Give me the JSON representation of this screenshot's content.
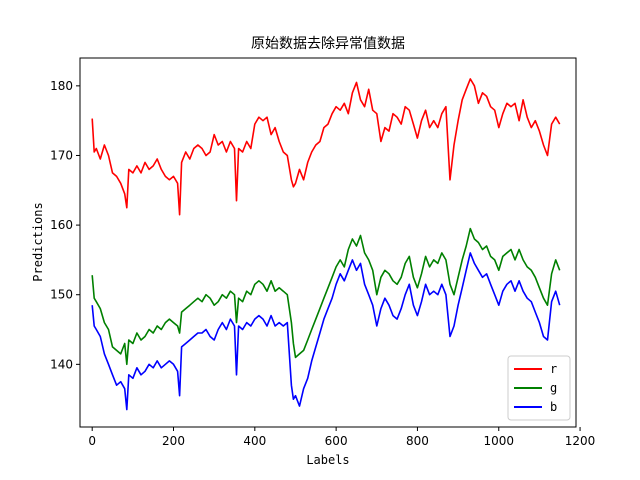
{
  "chart_data": {
    "type": "line",
    "title": "原始数据去除异常值数据",
    "xlabel": "Labels",
    "ylabel": "Predictions",
    "xlim": [
      -30,
      1190
    ],
    "ylim": [
      131,
      184
    ],
    "xticks": [
      0,
      200,
      400,
      600,
      800,
      1000,
      1200
    ],
    "yticks": [
      140,
      150,
      160,
      170,
      180
    ],
    "grid": false,
    "legend_position": "lower right",
    "series": [
      {
        "name": "r",
        "color": "#ff0000",
        "x": [
          0,
          5,
          10,
          20,
          30,
          40,
          50,
          60,
          70,
          80,
          85,
          90,
          100,
          110,
          120,
          130,
          140,
          150,
          160,
          170,
          180,
          190,
          200,
          210,
          215,
          220,
          230,
          240,
          250,
          260,
          270,
          280,
          290,
          300,
          310,
          320,
          330,
          340,
          350,
          355,
          360,
          370,
          380,
          390,
          400,
          410,
          420,
          430,
          440,
          450,
          460,
          470,
          480,
          490,
          495,
          500,
          510,
          520,
          530,
          540,
          550,
          560,
          570,
          580,
          590,
          600,
          610,
          620,
          630,
          640,
          650,
          660,
          670,
          680,
          690,
          700,
          710,
          720,
          730,
          740,
          750,
          760,
          770,
          780,
          790,
          800,
          810,
          820,
          830,
          840,
          850,
          860,
          870,
          880,
          890,
          900,
          910,
          920,
          930,
          940,
          950,
          960,
          970,
          980,
          990,
          1000,
          1010,
          1020,
          1030,
          1040,
          1050,
          1060,
          1070,
          1080,
          1090,
          1100,
          1110,
          1120,
          1130,
          1140,
          1150
        ],
        "y": [
          175.3,
          170.5,
          171.0,
          169.5,
          171.5,
          170.0,
          167.5,
          167.0,
          166.0,
          164.5,
          162.5,
          168.0,
          167.5,
          168.5,
          167.5,
          169.0,
          168.0,
          168.5,
          169.5,
          168.0,
          167.0,
          166.5,
          167.0,
          166.0,
          161.5,
          169.0,
          170.5,
          169.5,
          171.0,
          171.5,
          171.0,
          170.0,
          170.5,
          173.0,
          171.5,
          172.0,
          170.5,
          172.0,
          171.0,
          163.5,
          171.0,
          170.5,
          172.0,
          171.0,
          174.5,
          175.5,
          175.0,
          175.5,
          173.0,
          174.0,
          172.0,
          170.5,
          170.0,
          166.5,
          165.5,
          166.0,
          168.0,
          166.5,
          169.0,
          170.5,
          171.5,
          172.0,
          174.0,
          174.5,
          176.0,
          177.0,
          176.5,
          177.5,
          176.0,
          179.0,
          180.5,
          178.0,
          177.0,
          179.5,
          176.5,
          176.0,
          172.0,
          174.0,
          173.5,
          176.0,
          175.5,
          174.5,
          177.0,
          176.5,
          174.5,
          172.5,
          175.0,
          176.5,
          174.0,
          175.0,
          174.0,
          176.0,
          177.0,
          166.5,
          171.5,
          175.0,
          178.0,
          179.5,
          181.0,
          180.0,
          177.5,
          179.0,
          178.5,
          177.0,
          176.5,
          174.0,
          176.0,
          177.5,
          177.0,
          177.5,
          175.0,
          178.0,
          175.5,
          174.0,
          175.0,
          173.5,
          171.5,
          170.0,
          174.5,
          175.5,
          174.5
        ]
      },
      {
        "name": "g",
        "color": "#008000",
        "x": [
          0,
          5,
          10,
          20,
          30,
          40,
          50,
          60,
          70,
          80,
          85,
          90,
          100,
          110,
          120,
          130,
          140,
          150,
          160,
          170,
          180,
          190,
          200,
          210,
          215,
          220,
          230,
          240,
          250,
          260,
          270,
          280,
          290,
          300,
          310,
          320,
          330,
          340,
          350,
          355,
          360,
          370,
          380,
          390,
          400,
          410,
          420,
          430,
          440,
          450,
          460,
          470,
          480,
          490,
          495,
          500,
          510,
          520,
          530,
          540,
          550,
          560,
          570,
          580,
          590,
          600,
          610,
          620,
          630,
          640,
          650,
          660,
          670,
          680,
          690,
          700,
          710,
          720,
          730,
          740,
          750,
          760,
          770,
          780,
          790,
          800,
          810,
          820,
          830,
          840,
          850,
          860,
          870,
          880,
          890,
          900,
          910,
          920,
          930,
          940,
          950,
          960,
          970,
          980,
          990,
          1000,
          1010,
          1020,
          1030,
          1040,
          1050,
          1060,
          1070,
          1080,
          1090,
          1100,
          1110,
          1120,
          1130,
          1140,
          1150
        ],
        "y": [
          152.8,
          149.5,
          149.0,
          148.0,
          146.0,
          145.0,
          142.5,
          142.0,
          141.5,
          143.0,
          140.0,
          143.5,
          143.0,
          144.5,
          143.5,
          144.0,
          145.0,
          144.5,
          145.5,
          145.0,
          146.0,
          146.5,
          146.0,
          145.5,
          144.5,
          147.5,
          148.0,
          148.5,
          149.0,
          149.5,
          149.0,
          150.0,
          149.5,
          148.5,
          149.0,
          150.0,
          149.5,
          150.5,
          150.0,
          146.0,
          149.5,
          149.0,
          150.5,
          150.0,
          151.5,
          152.0,
          151.5,
          150.5,
          152.0,
          150.5,
          151.0,
          150.5,
          150.0,
          146.0,
          143.0,
          141.0,
          141.5,
          142.0,
          143.5,
          145.0,
          146.5,
          148.0,
          149.5,
          151.0,
          152.5,
          154.0,
          155.0,
          154.0,
          156.5,
          158.0,
          157.0,
          158.5,
          156.0,
          155.0,
          153.5,
          150.0,
          152.5,
          153.5,
          153.0,
          152.0,
          151.5,
          152.5,
          154.5,
          155.5,
          152.5,
          151.0,
          153.0,
          155.5,
          154.0,
          155.0,
          154.5,
          156.0,
          155.0,
          151.5,
          150.0,
          152.5,
          155.0,
          157.0,
          159.5,
          158.0,
          157.5,
          156.5,
          157.0,
          155.5,
          155.0,
          153.5,
          155.5,
          156.0,
          156.5,
          155.0,
          156.5,
          155.0,
          154.0,
          153.5,
          152.5,
          151.0,
          149.5,
          148.5,
          153.0,
          155.0,
          153.5
        ]
      },
      {
        "name": "b",
        "color": "#0000ff",
        "x": [
          0,
          5,
          10,
          20,
          30,
          40,
          50,
          60,
          70,
          80,
          85,
          90,
          100,
          110,
          120,
          130,
          140,
          150,
          160,
          170,
          180,
          190,
          200,
          210,
          215,
          220,
          230,
          240,
          250,
          260,
          270,
          280,
          290,
          300,
          310,
          320,
          330,
          340,
          350,
          355,
          360,
          370,
          380,
          390,
          400,
          410,
          420,
          430,
          440,
          450,
          460,
          470,
          480,
          490,
          495,
          500,
          510,
          520,
          530,
          540,
          550,
          560,
          570,
          580,
          590,
          600,
          610,
          620,
          630,
          640,
          650,
          660,
          670,
          680,
          690,
          700,
          710,
          720,
          730,
          740,
          750,
          760,
          770,
          780,
          790,
          800,
          810,
          820,
          830,
          840,
          850,
          860,
          870,
          880,
          890,
          900,
          910,
          920,
          930,
          940,
          950,
          960,
          970,
          980,
          990,
          1000,
          1010,
          1020,
          1030,
          1040,
          1050,
          1060,
          1070,
          1080,
          1090,
          1100,
          1110,
          1120,
          1130,
          1140,
          1150
        ],
        "y": [
          148.5,
          145.5,
          145.0,
          144.0,
          141.5,
          140.0,
          138.5,
          137.0,
          137.5,
          136.5,
          133.5,
          138.5,
          138.0,
          139.5,
          138.5,
          139.0,
          140.0,
          139.5,
          140.5,
          139.5,
          140.0,
          140.5,
          140.0,
          139.0,
          135.5,
          142.5,
          143.0,
          143.5,
          144.0,
          144.5,
          144.5,
          145.0,
          144.0,
          143.5,
          145.0,
          146.0,
          145.0,
          146.5,
          145.5,
          138.5,
          145.5,
          145.0,
          146.0,
          145.5,
          146.5,
          147.0,
          146.5,
          145.5,
          147.0,
          145.5,
          146.0,
          145.5,
          146.0,
          137.0,
          135.0,
          135.5,
          134.0,
          136.5,
          138.0,
          140.5,
          142.5,
          144.5,
          146.5,
          148.0,
          149.5,
          151.5,
          153.0,
          152.0,
          153.5,
          155.0,
          153.5,
          154.5,
          151.5,
          150.0,
          148.5,
          145.5,
          148.0,
          149.5,
          148.5,
          147.0,
          146.5,
          148.0,
          150.0,
          151.5,
          148.5,
          147.0,
          149.0,
          151.5,
          150.0,
          150.5,
          150.0,
          151.5,
          150.0,
          144.0,
          145.5,
          148.5,
          151.0,
          153.5,
          156.0,
          154.5,
          153.5,
          152.5,
          153.0,
          151.5,
          150.0,
          148.5,
          150.5,
          151.5,
          152.0,
          150.5,
          152.0,
          150.5,
          149.5,
          149.0,
          147.5,
          146.0,
          144.0,
          143.5,
          149.0,
          150.5,
          148.5
        ]
      }
    ]
  }
}
